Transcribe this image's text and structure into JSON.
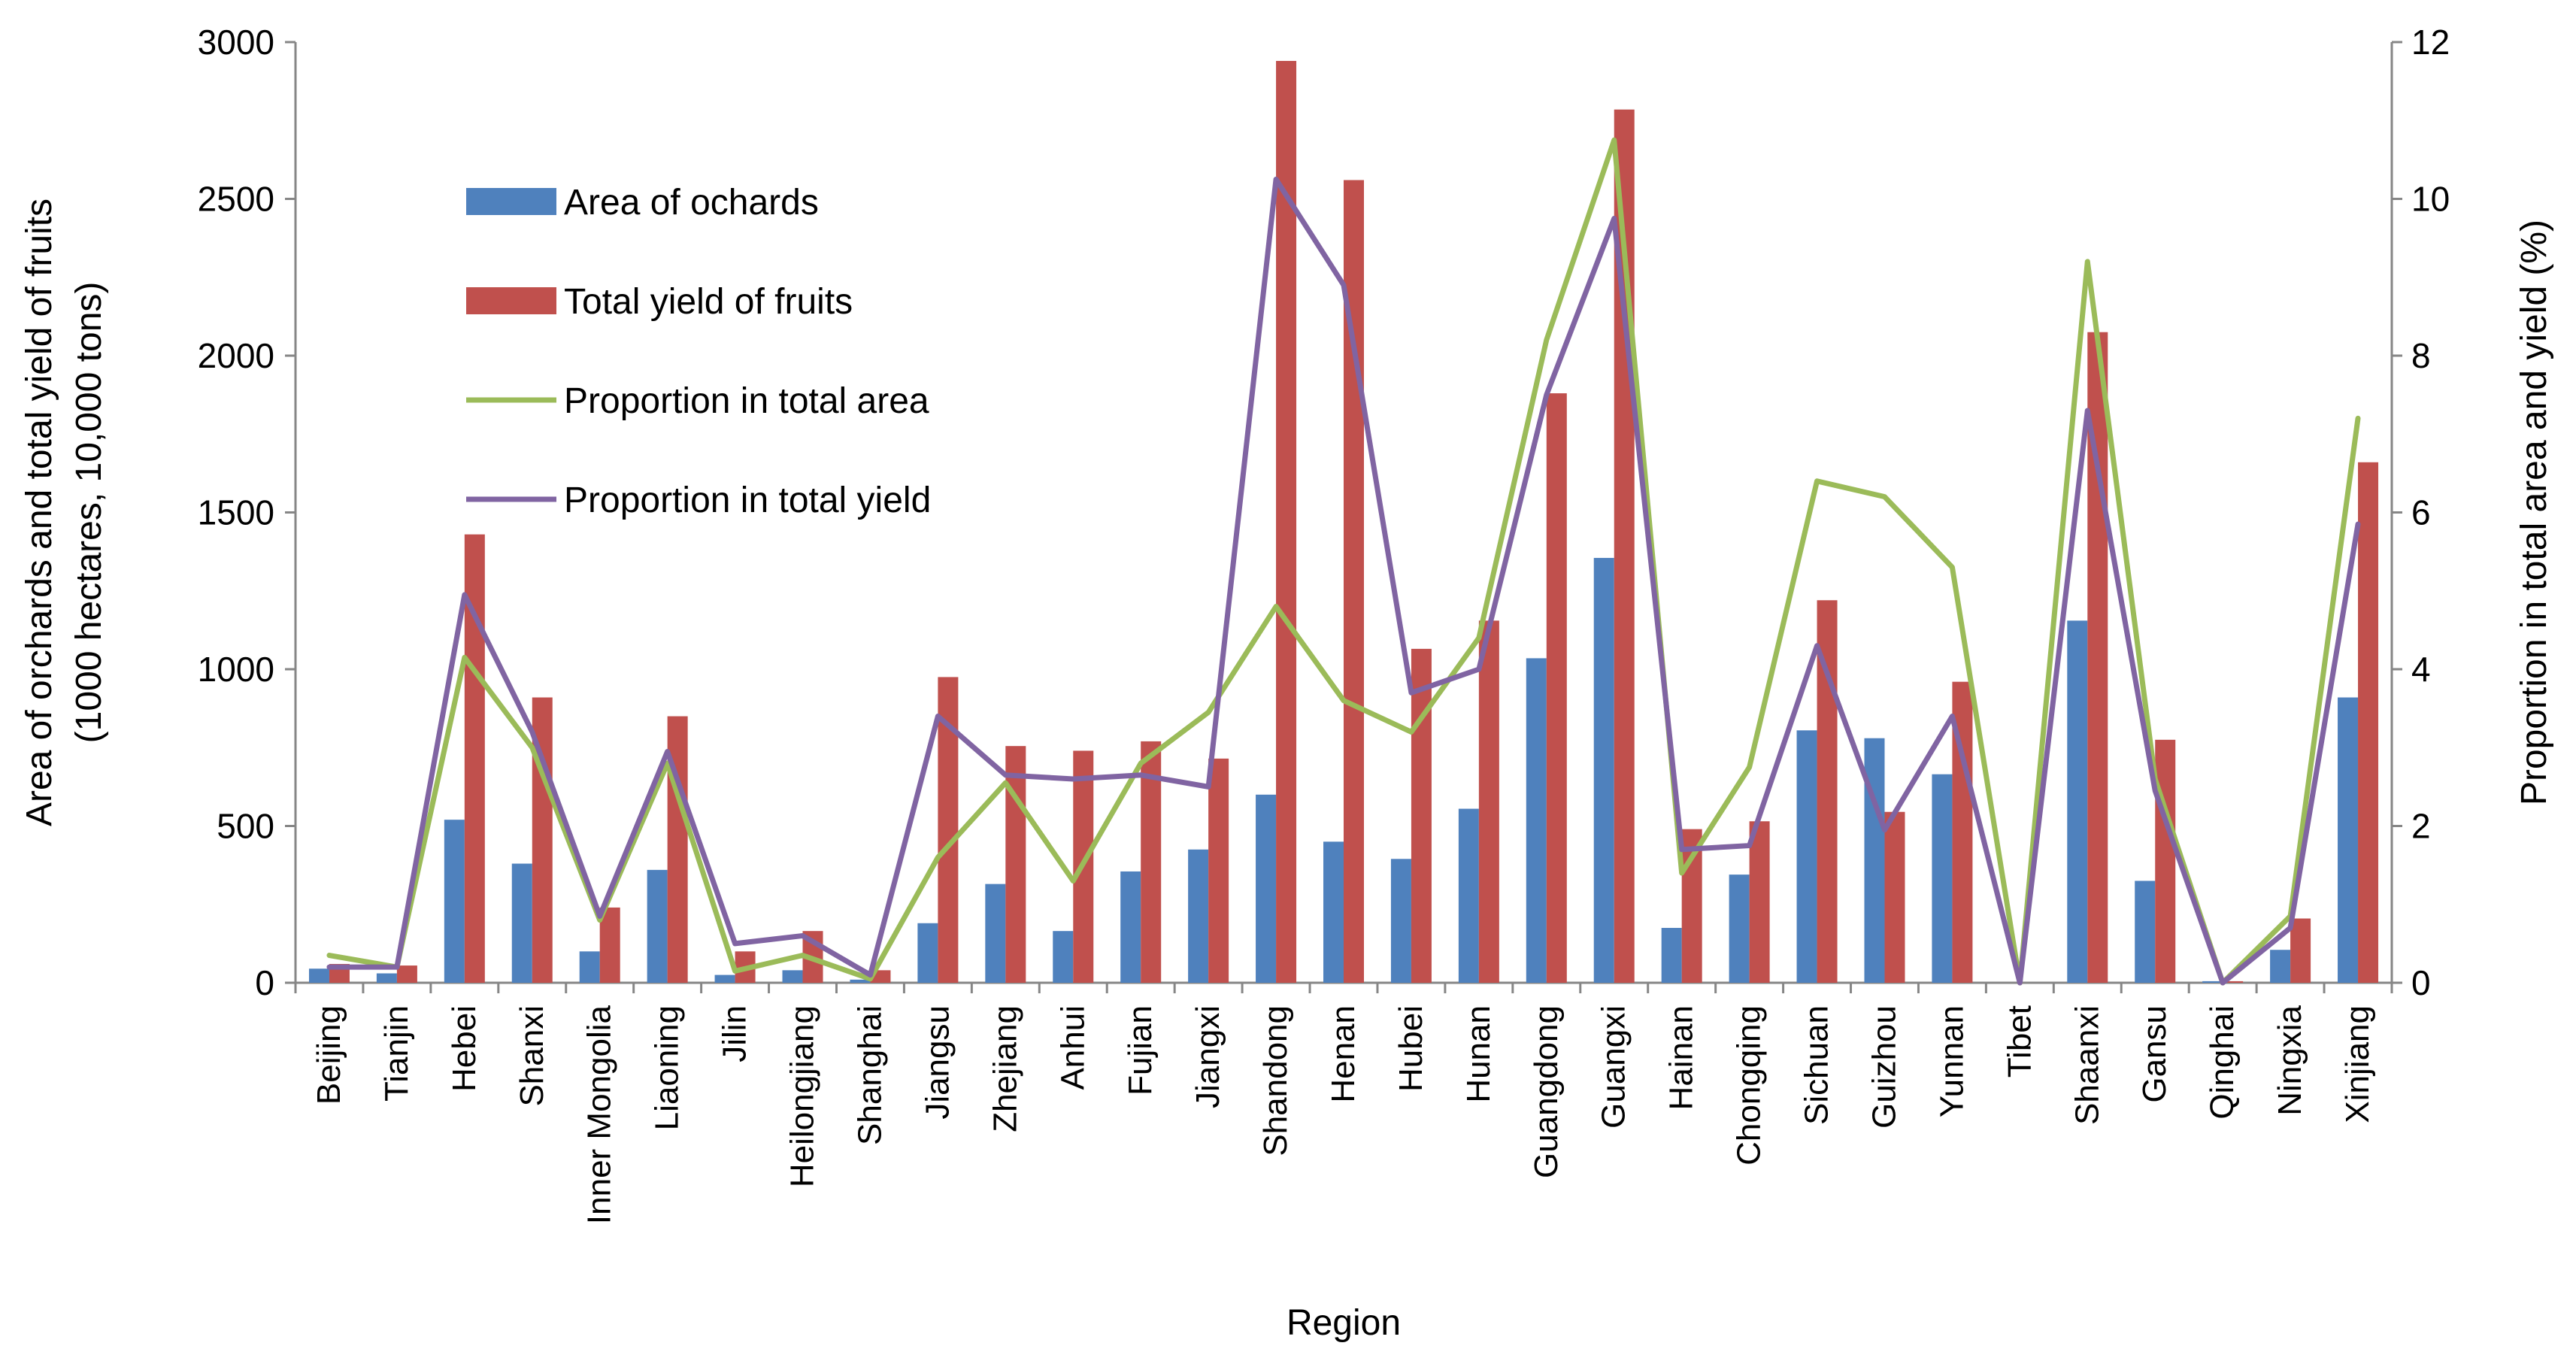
{
  "chart_data": {
    "type": "bar+line",
    "title": "",
    "xlabel": "Region",
    "ylabel_left": "Area of orchards and total yield of fruits (1000 hectares, 10,000 tons)",
    "ylabel_left_lines": [
      "Area of orchards and total yield of fruits",
      "(1000 hectares, 10,000 tons)"
    ],
    "ylabel_right": "Proportion in total area and yield (%)",
    "ylim_left": [
      0,
      3000
    ],
    "ylim_right": [
      0,
      12
    ],
    "yticks_left": [
      "0",
      "500",
      "1000",
      "1500",
      "2000",
      "2500",
      "3000"
    ],
    "yticks_right": [
      "0",
      "2",
      "4",
      "6",
      "8",
      "10",
      "12"
    ],
    "legend_position": "top-left",
    "categories": [
      "Beijing",
      "Tianjin",
      "Hebei",
      "Shanxi",
      "Inner Mongolia",
      "Liaoning",
      "Jilin",
      "Heilongjiang",
      "Shanghai",
      "Jiangsu",
      "Zhejiang",
      "Anhui",
      "Fujian",
      "Jiangxi",
      "Shandong",
      "Henan",
      "Hubei",
      "Hunan",
      "Guangdong",
      "Guangxi",
      "Hainan",
      "Chongqing",
      "Sichuan",
      "Guizhou",
      "Yunnan",
      "Tibet",
      "Shaanxi",
      "Gansu",
      "Qinghai",
      "Ningxia",
      "Xinjiang"
    ],
    "series": [
      {
        "name": "Area of ochards",
        "type": "bar",
        "axis": "left",
        "color": "#4F81BD",
        "values": [
          45,
          30,
          520,
          380,
          100,
          360,
          25,
          40,
          10,
          190,
          315,
          165,
          355,
          425,
          600,
          450,
          395,
          555,
          1035,
          1355,
          175,
          345,
          805,
          780,
          665,
          0,
          1155,
          325,
          5,
          105,
          910
        ]
      },
      {
        "name": "Total yield of fruits",
        "type": "bar",
        "axis": "left",
        "color": "#C0504D",
        "values": [
          60,
          55,
          1430,
          910,
          240,
          850,
          100,
          165,
          40,
          975,
          755,
          740,
          770,
          715,
          2940,
          2560,
          1065,
          1155,
          1880,
          2785,
          490,
          515,
          1220,
          545,
          960,
          0,
          2075,
          775,
          5,
          205,
          1660
        ]
      },
      {
        "name": "Proportion in total area",
        "type": "line",
        "axis": "right",
        "color": "#9BBB59",
        "values": [
          0.35,
          0.2,
          4.15,
          3.0,
          0.8,
          2.8,
          0.15,
          0.35,
          0.05,
          1.6,
          2.55,
          1.3,
          2.8,
          3.45,
          4.8,
          3.6,
          3.2,
          4.4,
          8.2,
          10.75,
          1.4,
          2.75,
          6.4,
          6.2,
          5.3,
          0.0,
          9.2,
          2.6,
          0.0,
          0.85,
          7.2
        ]
      },
      {
        "name": "Proportion in total yield",
        "type": "line",
        "axis": "right",
        "color": "#8064A2",
        "values": [
          0.2,
          0.2,
          4.95,
          3.2,
          0.85,
          2.95,
          0.5,
          0.6,
          0.1,
          3.4,
          2.65,
          2.6,
          2.65,
          2.5,
          10.25,
          8.9,
          3.7,
          4.0,
          7.5,
          9.75,
          1.7,
          1.75,
          4.3,
          1.95,
          3.4,
          0.0,
          7.3,
          2.45,
          0.0,
          0.7,
          5.85
        ]
      }
    ]
  }
}
